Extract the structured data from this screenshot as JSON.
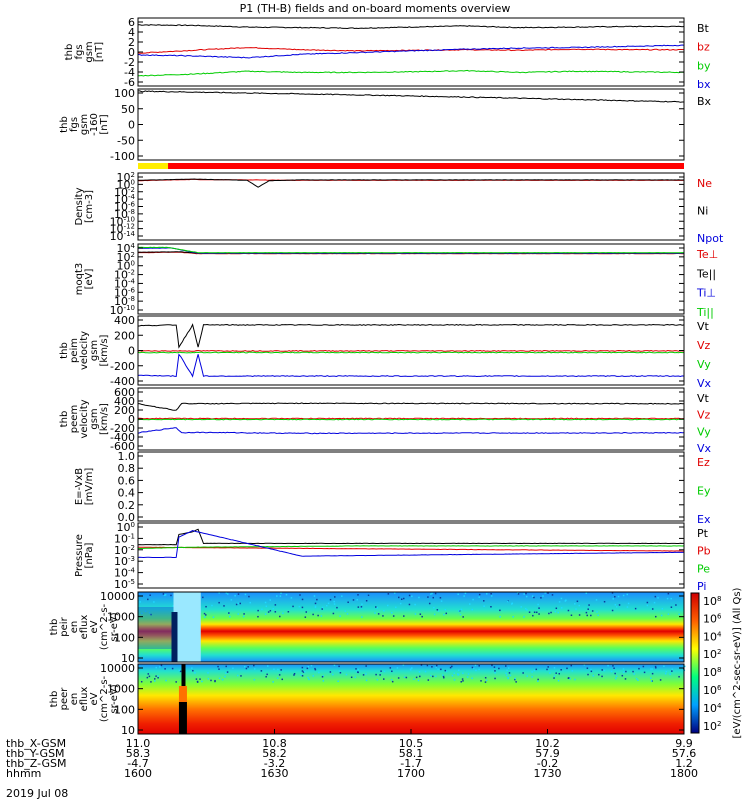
{
  "title": "P1 (TH-B) fields and on-board moments overview",
  "date_label": "2019 Jul 08",
  "orbit_rows": [
    {
      "label": "thb_X-GSM",
      "values": [
        "11.0",
        "10.8",
        "10.5",
        "10.2",
        "9.9"
      ]
    },
    {
      "label": "thb_Y-GSM",
      "values": [
        "58.3",
        "58.2",
        "58.1",
        "57.9",
        "57.6"
      ]
    },
    {
      "label": "thb_Z-GSM",
      "values": [
        "-4.7",
        "-3.2",
        "-1.7",
        "-0.2",
        "1.2"
      ]
    },
    {
      "label": "hhmm",
      "values": [
        "1600",
        "1630",
        "1700",
        "1730",
        "1800"
      ]
    }
  ],
  "colorbar": {
    "label": "[eV/(cm^2-sec-sr-eV)] (All Qs)",
    "ticks": [
      "10^2",
      "10^4",
      "10^6",
      "10^8"
    ]
  },
  "status_bar": {
    "colors": [
      "#ffee00",
      "#ff0000"
    ],
    "split_time": 1611
  },
  "colors": {
    "black": "#000000",
    "red": "#e00000",
    "green": "#00cc00",
    "blue": "#0000dd"
  },
  "chart_data": [
    {
      "type": "line",
      "id": "fgs",
      "ylabel": [
        "thb",
        "fgs",
        "gsm",
        "[nT]"
      ],
      "yticks": [
        "6",
        "4",
        "2",
        "0",
        "-2",
        "-4",
        "-6"
      ],
      "ylim": [
        -6,
        6
      ],
      "series": [
        {
          "name": "Bt",
          "color": "#000000",
          "x": [
            1600,
            1620,
            1640,
            1660,
            1680,
            1700,
            1720,
            1740,
            1760,
            1780,
            1800
          ],
          "y": [
            4.8,
            4.7,
            4.4,
            4.3,
            4.2,
            4.4,
            4.6,
            4.3,
            4.4,
            4.5,
            4.5
          ]
        },
        {
          "name": "bz",
          "color": "#e00000",
          "x": [
            1600,
            1620,
            1640,
            1660,
            1680,
            1700,
            1720,
            1740,
            1760,
            1780,
            1800
          ],
          "y": [
            -0.2,
            0.3,
            0.8,
            0.4,
            0.2,
            0.3,
            0.4,
            0.3,
            0.5,
            0.4,
            0.4
          ]
        },
        {
          "name": "by",
          "color": "#00cc00",
          "x": [
            1600,
            1620,
            1640,
            1660,
            1680,
            1700,
            1720,
            1740,
            1760,
            1780,
            1800
          ],
          "y": [
            -4.2,
            -3.9,
            -3.4,
            -3.6,
            -3.6,
            -3.5,
            -3.3,
            -3.6,
            -3.4,
            -3.5,
            -3.6
          ]
        },
        {
          "name": "bx",
          "color": "#0000dd",
          "x": [
            1600,
            1620,
            1640,
            1660,
            1680,
            1700,
            1720,
            1740,
            1760,
            1780,
            1800
          ],
          "y": [
            -0.5,
            -0.7,
            -1.0,
            -0.4,
            -0.1,
            0.2,
            0.5,
            0.7,
            0.8,
            1.0,
            1.2
          ]
        }
      ]
    },
    {
      "type": "line",
      "id": "fgs_ctrl",
      "ylabel": [
        "thb",
        "fgs",
        "gsm",
        "-160",
        "[nT]"
      ],
      "yticks": [
        "100",
        "50",
        "0",
        "-50",
        "-100"
      ],
      "ylim": [
        -125,
        105
      ],
      "series": [
        {
          "name": "Bx",
          "color": "#000000",
          "x": [
            1600,
            1640,
            1680,
            1720,
            1760,
            1800
          ],
          "y": [
            98,
            92,
            86,
            79,
            71,
            63
          ]
        }
      ]
    },
    {
      "type": "line",
      "id": "density",
      "ylabel": [
        "Density",
        "[cm-3]"
      ],
      "log": true,
      "yticks": [
        "10^2",
        "10^0",
        "10^-2",
        "10^-4",
        "10^-6",
        "10^-8",
        "10^-10",
        "10^-12",
        "10^-14"
      ],
      "ylim": [
        -14.5,
        2
      ],
      "series": [
        {
          "name": "Ne",
          "color": "#e00000",
          "x": [
            1600,
            1620,
            1640,
            1660,
            1700,
            1760,
            1800
          ],
          "y": [
            0.1,
            0.4,
            0.3,
            0.2,
            0.2,
            0.2,
            0.2
          ]
        },
        {
          "name": "Ni",
          "color": "#000000",
          "x": [
            1600,
            1620,
            1640,
            1644,
            1648,
            1660,
            1700,
            1760,
            1800
          ],
          "y": [
            0.2,
            0.5,
            0.2,
            -1.5,
            0.1,
            0.3,
            0.3,
            0.3,
            0.3
          ]
        },
        {
          "name": "Npot",
          "color": "#0000dd",
          "x": [],
          "y": []
        }
      ]
    },
    {
      "type": "line",
      "id": "moments",
      "ylabel": [
        "moqt3",
        "[eV]"
      ],
      "log": true,
      "yticks": [
        "10^4",
        "10^2",
        "10^0",
        "10^-2",
        "10^-4",
        "10^-6",
        "10^-8",
        "10^-10"
      ],
      "ylim": [
        -10.5,
        4
      ],
      "series": [
        {
          "name": "Te⊥",
          "color": "#e00000",
          "x": [
            1600,
            1615,
            1622,
            1800
          ],
          "y": [
            2.2,
            2.3,
            2.0,
            2.0
          ]
        },
        {
          "name": "Te||",
          "color": "#000000",
          "x": [
            1600,
            1615,
            1622,
            1800
          ],
          "y": [
            2.3,
            2.4,
            2.1,
            2.1
          ]
        },
        {
          "name": "Ti⊥",
          "color": "#0000dd",
          "x": [
            1600,
            1612,
            1622,
            1800
          ],
          "y": [
            3.1,
            3.2,
            2.1,
            2.1
          ]
        },
        {
          "name": "Ti||",
          "color": "#00cc00",
          "x": [
            1600,
            1611,
            1622,
            1800
          ],
          "y": [
            3.3,
            3.3,
            2.2,
            2.2
          ]
        }
      ]
    },
    {
      "type": "line",
      "id": "peim",
      "ylabel": [
        "thb",
        "peim",
        "velocity",
        "gsm",
        "[km/s]"
      ],
      "yticks": [
        "400",
        "200",
        "0",
        "-200",
        "-400"
      ],
      "ylim": [
        -420,
        430
      ],
      "series": [
        {
          "name": "Vt",
          "color": "#000000",
          "x": [
            1600,
            1614,
            1615,
            1620,
            1622,
            1624,
            1800
          ],
          "y": [
            310,
            320,
            50,
            320,
            50,
            320,
            320
          ]
        },
        {
          "name": "Vz",
          "color": "#e00000",
          "x": [
            1600,
            1800
          ],
          "y": [
            0,
            0
          ]
        },
        {
          "name": "Vy",
          "color": "#00cc00",
          "x": [
            1600,
            1800
          ],
          "y": [
            -20,
            -20
          ]
        },
        {
          "name": "Vx",
          "color": "#0000dd",
          "x": [
            1600,
            1614,
            1615,
            1620,
            1622,
            1624,
            1800
          ],
          "y": [
            -300,
            -310,
            -40,
            -310,
            -40,
            -310,
            -310
          ]
        }
      ]
    },
    {
      "type": "line",
      "id": "peem",
      "ylabel": [
        "thb",
        "peem",
        "velocity",
        "gsm",
        "[km/s]"
      ],
      "yticks": [
        "600",
        "400",
        "200",
        "0",
        "-200",
        "-400",
        "-600"
      ],
      "ylim": [
        -650,
        650
      ],
      "series": [
        {
          "name": "Vt",
          "color": "#000000",
          "x": [
            1600,
            1614,
            1616,
            1620,
            1660,
            1800
          ],
          "y": [
            320,
            180,
            330,
            320,
            330,
            320
          ]
        },
        {
          "name": "Vz",
          "color": "#e00000",
          "x": [
            1600,
            1800
          ],
          "y": [
            10,
            10
          ]
        },
        {
          "name": "Vy",
          "color": "#00cc00",
          "x": [
            1600,
            1800
          ],
          "y": [
            -10,
            -10
          ]
        },
        {
          "name": "Vx",
          "color": "#0000dd",
          "x": [
            1600,
            1614,
            1616,
            1620,
            1660,
            1800
          ],
          "y": [
            -290,
            -180,
            -290,
            -280,
            -300,
            -290
          ]
        }
      ]
    },
    {
      "type": "line",
      "id": "efield",
      "ylabel": [
        "E=-VxB",
        "[mV/m]"
      ],
      "yticks": [
        "1.0",
        "0.8",
        "0.6",
        "0.4",
        "0.2",
        "0.0"
      ],
      "ylim": [
        0,
        1.05
      ],
      "series": [
        {
          "name": "Ez",
          "color": "#e00000",
          "x": [],
          "y": []
        },
        {
          "name": "Ey",
          "color": "#00cc00",
          "x": [],
          "y": []
        },
        {
          "name": "Ex",
          "color": "#0000dd",
          "x": [],
          "y": []
        }
      ]
    },
    {
      "type": "line",
      "id": "pressure",
      "ylabel": [
        "Pressure",
        "[nPa]"
      ],
      "log": true,
      "yticks": [
        "10^0",
        "10^-1",
        "10^-2",
        "10^-3",
        "10^-4",
        "10^-5"
      ],
      "ylim": [
        -5,
        0.1
      ],
      "series": [
        {
          "name": "Pt",
          "color": "#000000",
          "x": [
            1600,
            1614,
            1615,
            1620,
            1622,
            1624,
            1800
          ],
          "y": [
            -1.6,
            -1.6,
            -0.8,
            -0.6,
            -0.4,
            -1.5,
            -1.5
          ]
        },
        {
          "name": "Pb",
          "color": "#e00000",
          "x": [
            1600,
            1800
          ],
          "y": [
            -1.8,
            -2.1
          ]
        },
        {
          "name": "Pe",
          "color": "#00cc00",
          "x": [
            1600,
            1620,
            1680,
            1800
          ],
          "y": [
            -1.9,
            -1.8,
            -1.7,
            -1.7
          ]
        },
        {
          "name": "Pi",
          "color": "#0000dd",
          "x": [
            1600,
            1614,
            1615,
            1620,
            1660,
            1800
          ],
          "y": [
            -2.6,
            -2.6,
            -1.0,
            -0.5,
            -2.5,
            -2.2
          ]
        }
      ]
    },
    {
      "type": "heatmap",
      "id": "peir",
      "ylabel": [
        "thb",
        "peir",
        "en",
        "eflux",
        "eV",
        "(cm^2-s-",
        "sr-eV)"
      ],
      "yticks": [
        "10000",
        "1000",
        "100",
        "10"
      ],
      "ylim": [
        1,
        4.3
      ],
      "band_center": 2.75,
      "band_width": 0.55
    },
    {
      "type": "heatmap",
      "id": "peer",
      "ylabel": [
        "thb",
        "peer",
        "en",
        "eflux",
        "eV",
        "(cm^2-s-",
        "sr-eV)"
      ],
      "yticks": [
        "10000",
        "1000",
        "100",
        "10"
      ],
      "ylim": [
        0.6,
        4.2
      ],
      "band_center": 0.8,
      "band_width": 1.4
    }
  ]
}
